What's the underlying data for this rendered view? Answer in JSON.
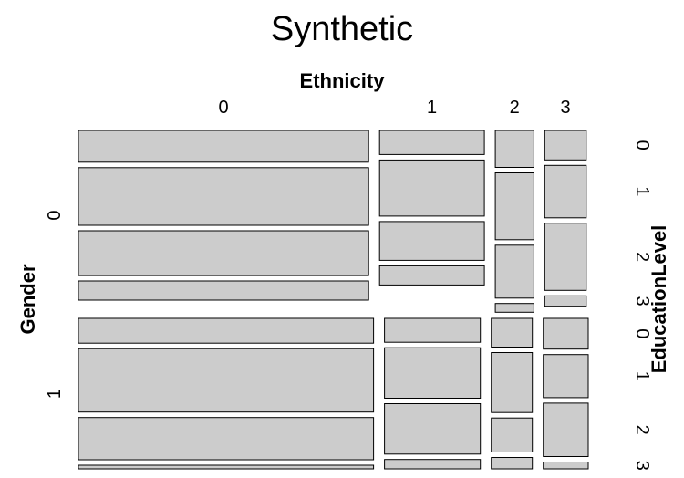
{
  "chart_data": {
    "type": "mosaic",
    "title": "Synthetic",
    "xlabel": "Ethnicity",
    "ylabel": "Gender",
    "right_label": "EducationLevel",
    "tile_color": "#cccccc",
    "border_color": "#000000",
    "ethnicity_levels": [
      "0",
      "1",
      "2",
      "3"
    ],
    "gender_levels": [
      "0",
      "1"
    ],
    "education_levels": [
      "0",
      "1",
      "2",
      "3"
    ],
    "gender_share": [
      0.53,
      0.47
    ],
    "ethnicity_share_by_gender": {
      "0": [
        0.587,
        0.212,
        0.078,
        0.084
      ],
      "1": [
        0.597,
        0.194,
        0.083,
        0.091
      ]
    },
    "education_share": {
      "0": {
        "0": [
          0.207,
          0.376,
          0.292,
          0.125
        ],
        "1": [
          0.157,
          0.366,
          0.253,
          0.125
        ],
        "2": [
          0.241,
          0.436,
          0.345,
          0.057
        ],
        "3": [
          0.192,
          0.342,
          0.438,
          0.068
        ]
      },
      "1": {
        "0": [
          0.185,
          0.473,
          0.315,
          0.027
        ],
        "1": [
          0.178,
          0.376,
          0.376,
          0.07
        ],
        "2": [
          0.214,
          0.447,
          0.254,
          0.085
        ],
        "3": [
          0.229,
          0.321,
          0.399,
          0.051
        ]
      }
    }
  }
}
